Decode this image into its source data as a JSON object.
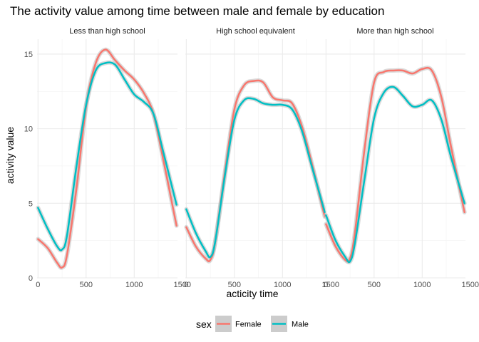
{
  "chart_data": {
    "type": "line",
    "title": "The activity value among time between male and female by education",
    "xlabel": "acticity time",
    "ylabel": "activity value",
    "xlim": [
      -10,
      1450
    ],
    "ylim": [
      0,
      16
    ],
    "x_ticks": [
      0,
      500,
      1000,
      1500
    ],
    "x_tick_labels": [
      "0",
      "500",
      "1000",
      "1500"
    ],
    "y_ticks": [
      0,
      5,
      10,
      15
    ],
    "y_tick_labels": [
      "0",
      "5",
      "10",
      "15"
    ],
    "grid": true,
    "legend": {
      "title": "sex",
      "position": "bottom",
      "entries": [
        "Female",
        "Male"
      ]
    },
    "colors": {
      "Female": "#F8766D",
      "Male": "#00BFC4",
      "band": "#bdbdbd"
    },
    "x": [
      0,
      100,
      200,
      250,
      300,
      400,
      500,
      600,
      700,
      800,
      900,
      1000,
      1100,
      1200,
      1300,
      1440
    ],
    "panels": [
      {
        "label": "Less than high school",
        "series": [
          {
            "name": "Female",
            "values": [
              2.6,
              2.0,
              1.0,
              0.7,
              1.5,
              6.0,
              11.5,
              14.4,
              15.3,
              14.6,
              13.9,
              13.3,
              12.4,
              11.0,
              8.0,
              3.5
            ]
          },
          {
            "name": "Male",
            "values": [
              4.7,
              3.3,
              2.1,
              1.9,
              2.8,
              7.5,
              11.6,
              13.9,
              14.4,
              14.3,
              13.3,
              12.3,
              11.8,
              11.0,
              8.5,
              4.9
            ]
          }
        ]
      },
      {
        "label": "High school equivalent",
        "series": [
          {
            "name": "Female",
            "values": [
              3.4,
              2.1,
              1.3,
              1.2,
              2.4,
              7.0,
              11.3,
              12.9,
              13.2,
              13.1,
              12.1,
              11.9,
              11.7,
              10.2,
              7.8,
              4.1
            ]
          },
          {
            "name": "Male",
            "values": [
              4.6,
              3.0,
              1.8,
              1.4,
              2.4,
              6.8,
              10.6,
              11.9,
              12.0,
              11.7,
              11.6,
              11.6,
              11.3,
              9.9,
              7.6,
              4.4
            ]
          }
        ]
      },
      {
        "label": "More than high school",
        "series": [
          {
            "name": "Female",
            "values": [
              3.6,
              2.1,
              1.2,
              1.3,
              3.0,
              8.6,
              13.1,
              13.8,
              13.9,
              13.9,
              13.7,
              14.0,
              13.9,
              12.1,
              8.8,
              4.4
            ]
          },
          {
            "name": "Male",
            "values": [
              4.2,
              2.5,
              1.4,
              1.1,
              2.3,
              6.6,
              10.7,
              12.4,
              12.8,
              12.2,
              11.5,
              11.6,
              11.9,
              10.6,
              8.1,
              5.0
            ]
          }
        ]
      }
    ]
  }
}
